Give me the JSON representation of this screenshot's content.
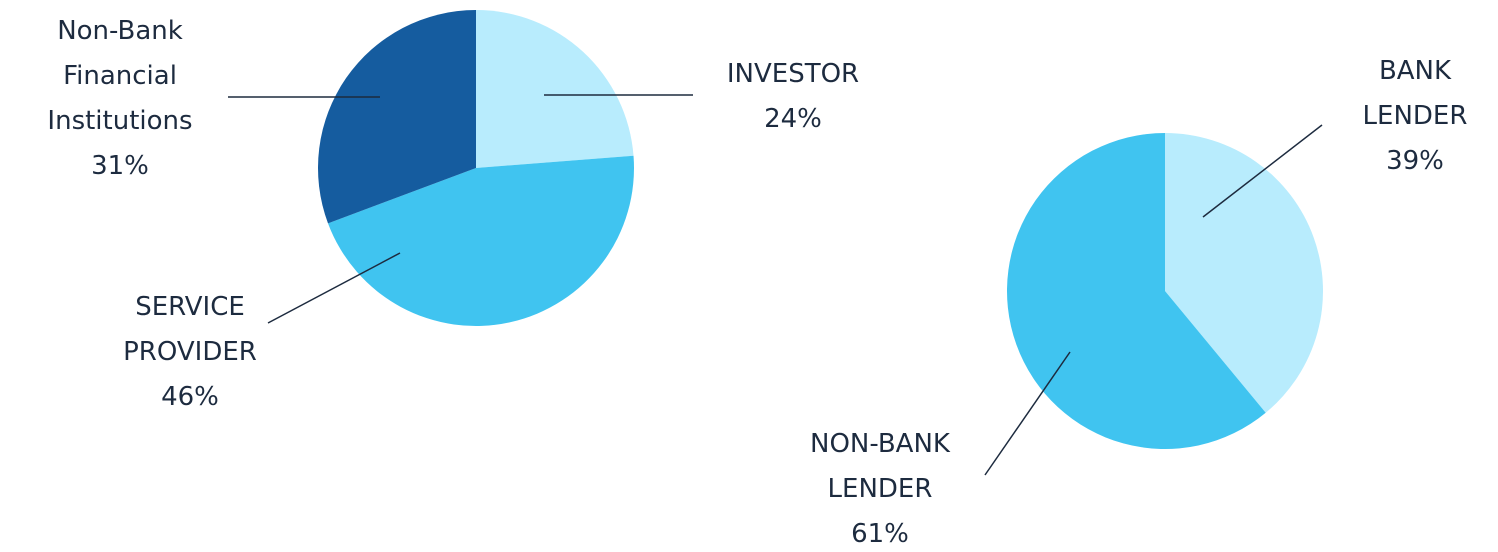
{
  "chart_data": [
    {
      "type": "pie",
      "categories": [
        "INVESTOR",
        "SERVICE PROVIDER",
        "Non-Bank Financial Institutions"
      ],
      "values": [
        24,
        46,
        31
      ],
      "value_labels": [
        "24%",
        "46%",
        "31%"
      ],
      "colors": [
        "#b8ecfd",
        "#40c4f0",
        "#155c9f"
      ]
    },
    {
      "type": "pie",
      "categories": [
        "BANK LENDER",
        "NON-BANK LENDER"
      ],
      "values": [
        39,
        61
      ],
      "value_labels": [
        "39%",
        "61%"
      ],
      "colors": [
        "#b8ecfd",
        "#40c4f0"
      ]
    }
  ]
}
